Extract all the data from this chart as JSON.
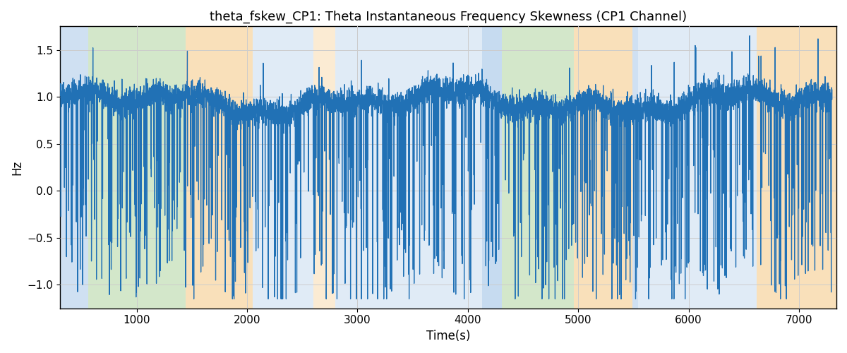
{
  "title": "theta_fskew_CP1: Theta Instantaneous Frequency Skewness (CP1 Channel)",
  "xlabel": "Time(s)",
  "ylabel": "Hz",
  "xlim": [
    305,
    7340
  ],
  "ylim": [
    -1.25,
    1.75
  ],
  "line_color": "#2171b5",
  "line_width": 0.9,
  "background_bands": [
    {
      "xstart": 305,
      "xend": 560,
      "color": "#a8c8e8",
      "alpha": 0.55
    },
    {
      "xstart": 560,
      "xend": 1440,
      "color": "#b0d4a0",
      "alpha": 0.55
    },
    {
      "xstart": 1440,
      "xend": 2050,
      "color": "#f5c882",
      "alpha": 0.55
    },
    {
      "xstart": 2050,
      "xend": 2600,
      "color": "#a8c8e8",
      "alpha": 0.35
    },
    {
      "xstart": 2600,
      "xend": 2800,
      "color": "#f5c882",
      "alpha": 0.35
    },
    {
      "xstart": 2800,
      "xend": 3200,
      "color": "#a8c8e8",
      "alpha": 0.35
    },
    {
      "xstart": 3200,
      "xend": 4130,
      "color": "#a8c8e8",
      "alpha": 0.35
    },
    {
      "xstart": 4130,
      "xend": 4310,
      "color": "#a8c8e8",
      "alpha": 0.65
    },
    {
      "xstart": 4310,
      "xend": 4960,
      "color": "#b0d4a0",
      "alpha": 0.55
    },
    {
      "xstart": 4960,
      "xend": 5490,
      "color": "#f5c882",
      "alpha": 0.55
    },
    {
      "xstart": 5490,
      "xend": 5540,
      "color": "#a8c8e8",
      "alpha": 0.55
    },
    {
      "xstart": 5540,
      "xend": 6620,
      "color": "#a8c8e8",
      "alpha": 0.35
    },
    {
      "xstart": 6620,
      "xend": 7340,
      "color": "#f5c882",
      "alpha": 0.55
    }
  ],
  "seed": 42,
  "n_points": 6800,
  "t_start": 305,
  "t_end": 7300,
  "grid_color": "#cccccc",
  "title_fontsize": 13,
  "tick_fontsize": 11,
  "label_fontsize": 12,
  "xticks": [
    1000,
    2000,
    3000,
    4000,
    5000,
    6000,
    7000
  ],
  "yticks": [
    -1.0,
    -0.5,
    0.0,
    0.5,
    1.0,
    1.5
  ]
}
